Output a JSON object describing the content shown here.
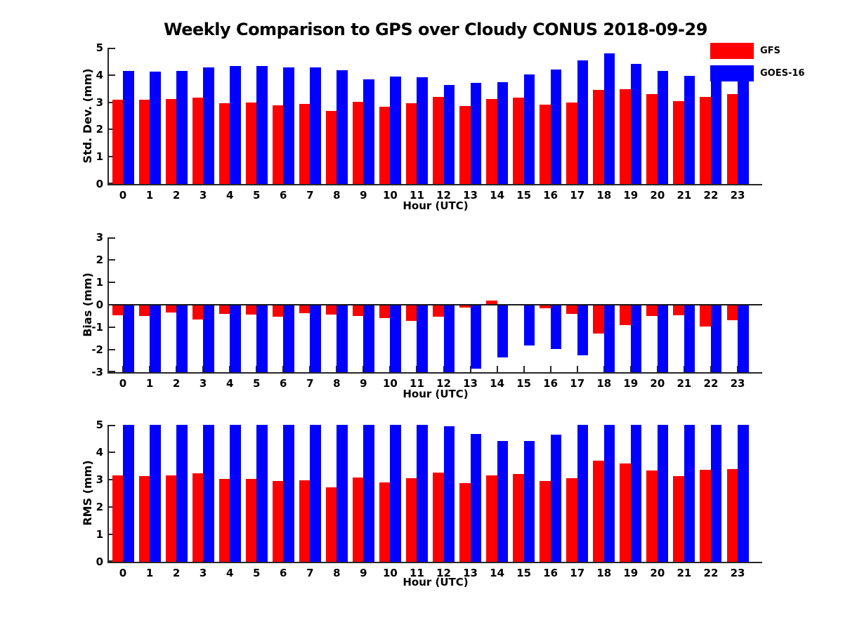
{
  "title": "Weekly Comparison to GPS over Cloudy CONUS 2018-09-29",
  "xlabel": "Hour (UTC)",
  "legend": [
    {
      "label": "GFS",
      "color": "#ff0000"
    },
    {
      "label": "GOES-16",
      "color": "#0000ff"
    }
  ],
  "colors": {
    "gfs": "#ff0000",
    "goes16": "#0000ff",
    "axis": "#262626",
    "text": "#000000"
  },
  "chart_data": [
    {
      "type": "bar",
      "ylabel": "Std. Dev. (mm)",
      "xlabel": "Hour (UTC)",
      "ylim": [
        0,
        5
      ],
      "yticks": [
        0,
        1,
        2,
        3,
        4,
        5
      ],
      "grid": false,
      "legend_position": "top-right",
      "categories": [
        0,
        1,
        2,
        3,
        4,
        5,
        6,
        7,
        8,
        9,
        10,
        11,
        12,
        13,
        14,
        15,
        16,
        17,
        18,
        19,
        20,
        21,
        22,
        23
      ],
      "series": [
        {
          "name": "GFS",
          "color": "#ff0000",
          "values": [
            3.1,
            3.1,
            3.13,
            3.16,
            2.97,
            3.0,
            2.88,
            2.93,
            2.67,
            3.01,
            2.83,
            2.97,
            3.19,
            2.87,
            3.11,
            3.17,
            2.92,
            2.99,
            3.45,
            3.47,
            3.29,
            3.03,
            3.19,
            3.29
          ]
        },
        {
          "name": "GOES-16",
          "color": "#0000ff",
          "values": [
            4.15,
            4.12,
            4.15,
            4.29,
            4.32,
            4.32,
            4.29,
            4.29,
            4.17,
            3.84,
            3.95,
            3.91,
            3.64,
            3.7,
            3.75,
            4.03,
            4.2,
            4.54,
            4.79,
            4.4,
            4.15,
            3.97,
            4.19,
            4.1
          ]
        }
      ]
    },
    {
      "type": "bar",
      "ylabel": "Bias (mm)",
      "xlabel": "Hour (UTC)",
      "ylim": [
        -3,
        3
      ],
      "yticks": [
        3,
        2,
        1,
        0,
        -1,
        -2,
        -3
      ],
      "grid": false,
      "categories": [
        0,
        1,
        2,
        3,
        4,
        5,
        6,
        7,
        8,
        9,
        10,
        11,
        12,
        13,
        14,
        15,
        16,
        17,
        18,
        19,
        20,
        21,
        22,
        23
      ],
      "series": [
        {
          "name": "GFS",
          "color": "#ff0000",
          "values": [
            -0.48,
            -0.5,
            -0.35,
            -0.65,
            -0.4,
            -0.44,
            -0.53,
            -0.37,
            -0.44,
            -0.49,
            -0.58,
            -0.73,
            -0.54,
            -0.11,
            0.2,
            -0.02,
            -0.16,
            -0.4,
            -1.28,
            -0.92,
            -0.5,
            -0.46,
            -0.97,
            -0.69
          ]
        },
        {
          "name": "GOES-16",
          "color": "#0000ff",
          "values": [
            -3,
            -3,
            -3,
            -3,
            -3,
            -3,
            -3,
            -3,
            -3,
            -3,
            -3,
            -3,
            -3,
            -2.84,
            -2.34,
            -1.82,
            -1.98,
            -2.24,
            -3,
            -3,
            -3,
            -3,
            -3,
            -3
          ]
        }
      ]
    },
    {
      "type": "bar",
      "ylabel": "RMS (mm)",
      "xlabel": "Hour (UTC)",
      "ylim": [
        0,
        5
      ],
      "yticks": [
        0,
        1,
        2,
        3,
        4,
        5
      ],
      "grid": false,
      "categories": [
        0,
        1,
        2,
        3,
        4,
        5,
        6,
        7,
        8,
        9,
        10,
        11,
        12,
        13,
        14,
        15,
        16,
        17,
        18,
        19,
        20,
        21,
        22,
        23
      ],
      "series": [
        {
          "name": "GFS",
          "color": "#ff0000",
          "values": [
            3.15,
            3.12,
            3.15,
            3.22,
            3.02,
            3.02,
            2.94,
            2.97,
            2.71,
            3.07,
            2.89,
            3.05,
            3.25,
            2.88,
            3.15,
            3.2,
            2.95,
            3.05,
            3.69,
            3.6,
            3.34,
            3.12,
            3.35,
            3.38
          ]
        },
        {
          "name": "GOES-16",
          "color": "#0000ff",
          "values": [
            5,
            5,
            5,
            5,
            5,
            5,
            5,
            5,
            5,
            5,
            5,
            5,
            4.94,
            4.66,
            4.4,
            4.4,
            4.64,
            5,
            5,
            5,
            5,
            5,
            5,
            5
          ]
        }
      ]
    }
  ]
}
